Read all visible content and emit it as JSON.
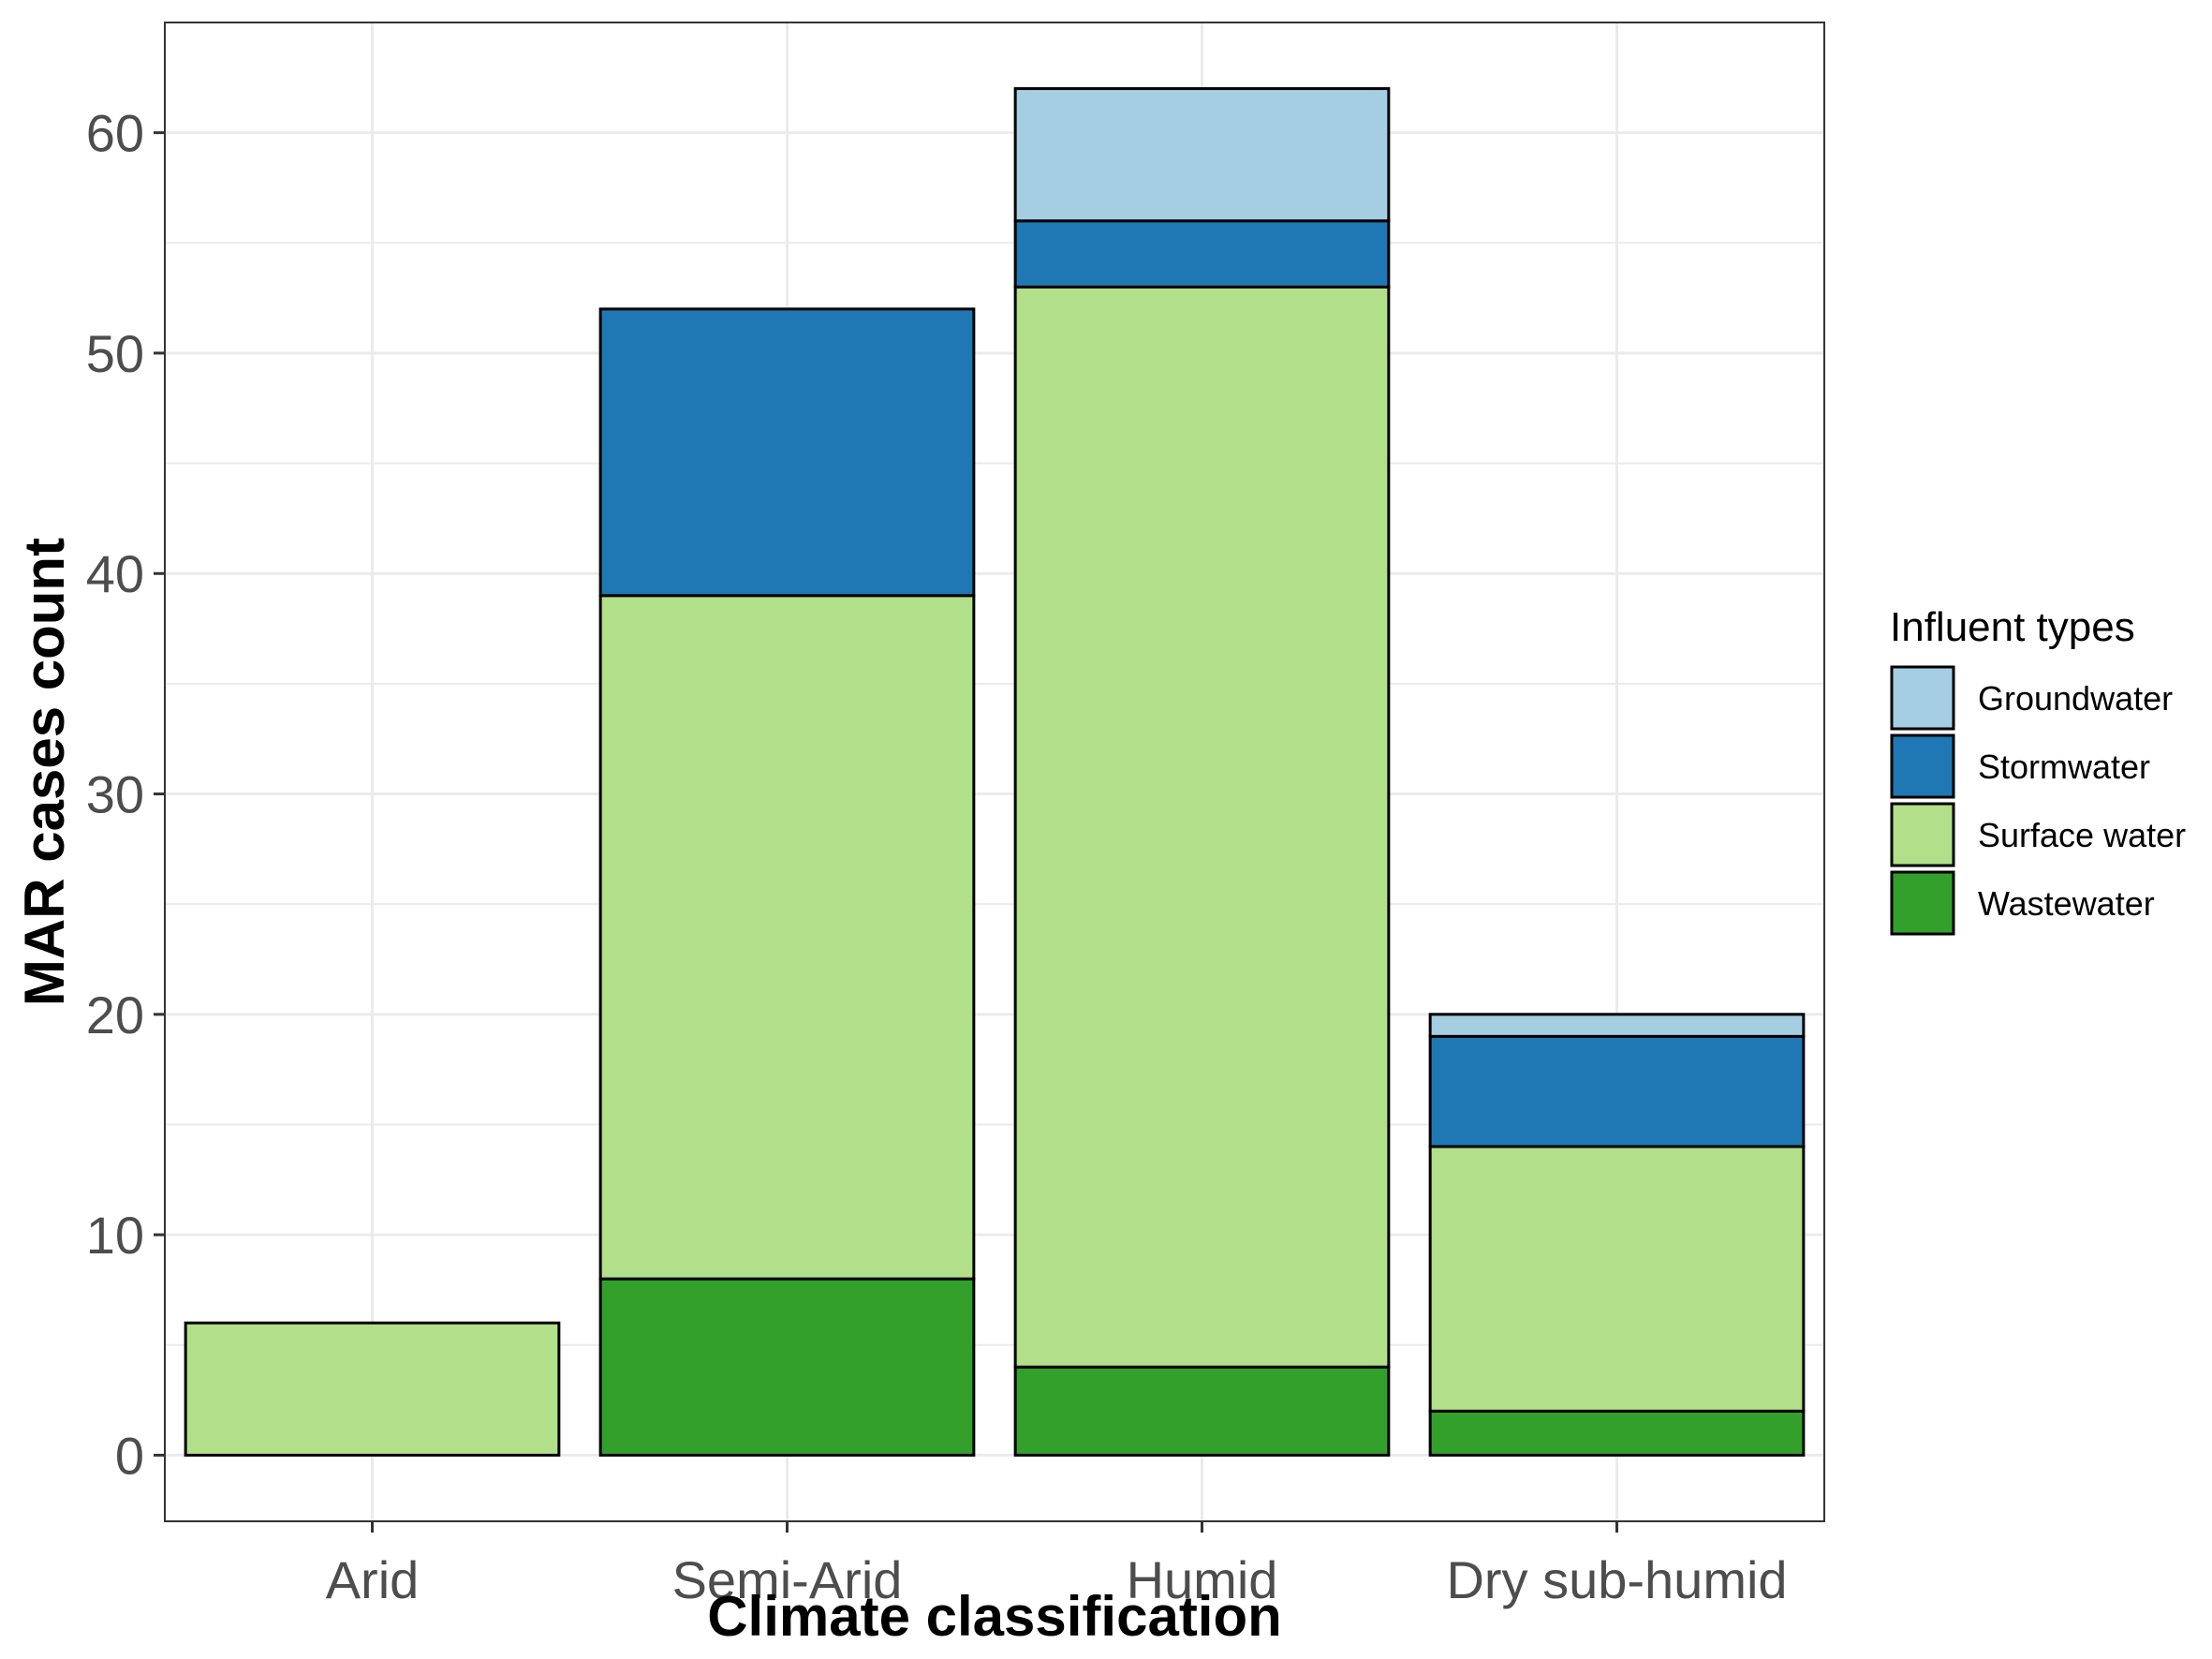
{
  "chart_data": {
    "type": "bar",
    "stacked": true,
    "categories": [
      "Arid",
      "Semi-Arid",
      "Humid",
      "Dry sub-humid"
    ],
    "series": [
      {
        "name": "Groundwater",
        "color": "#a6cee3",
        "values": [
          0,
          0,
          6,
          1
        ]
      },
      {
        "name": "Stormwater",
        "color": "#1f78b4",
        "values": [
          0,
          13,
          3,
          5
        ]
      },
      {
        "name": "Surface water",
        "color": "#b2df8a",
        "values": [
          6,
          31,
          49,
          12
        ]
      },
      {
        "name": "Wastewater",
        "color": "#33a02c",
        "values": [
          0,
          8,
          4,
          2
        ]
      }
    ],
    "stack_order_bottom_to_top": [
      "Wastewater",
      "Surface water",
      "Stormwater",
      "Groundwater"
    ],
    "xlabel": "Climate classification",
    "ylabel": "MAR cases count",
    "ylim": [
      -3,
      65
    ],
    "yticks": [
      0,
      10,
      20,
      30,
      40,
      50,
      60
    ],
    "grid": true,
    "legend": {
      "title": "Influent types",
      "position": "right"
    }
  }
}
